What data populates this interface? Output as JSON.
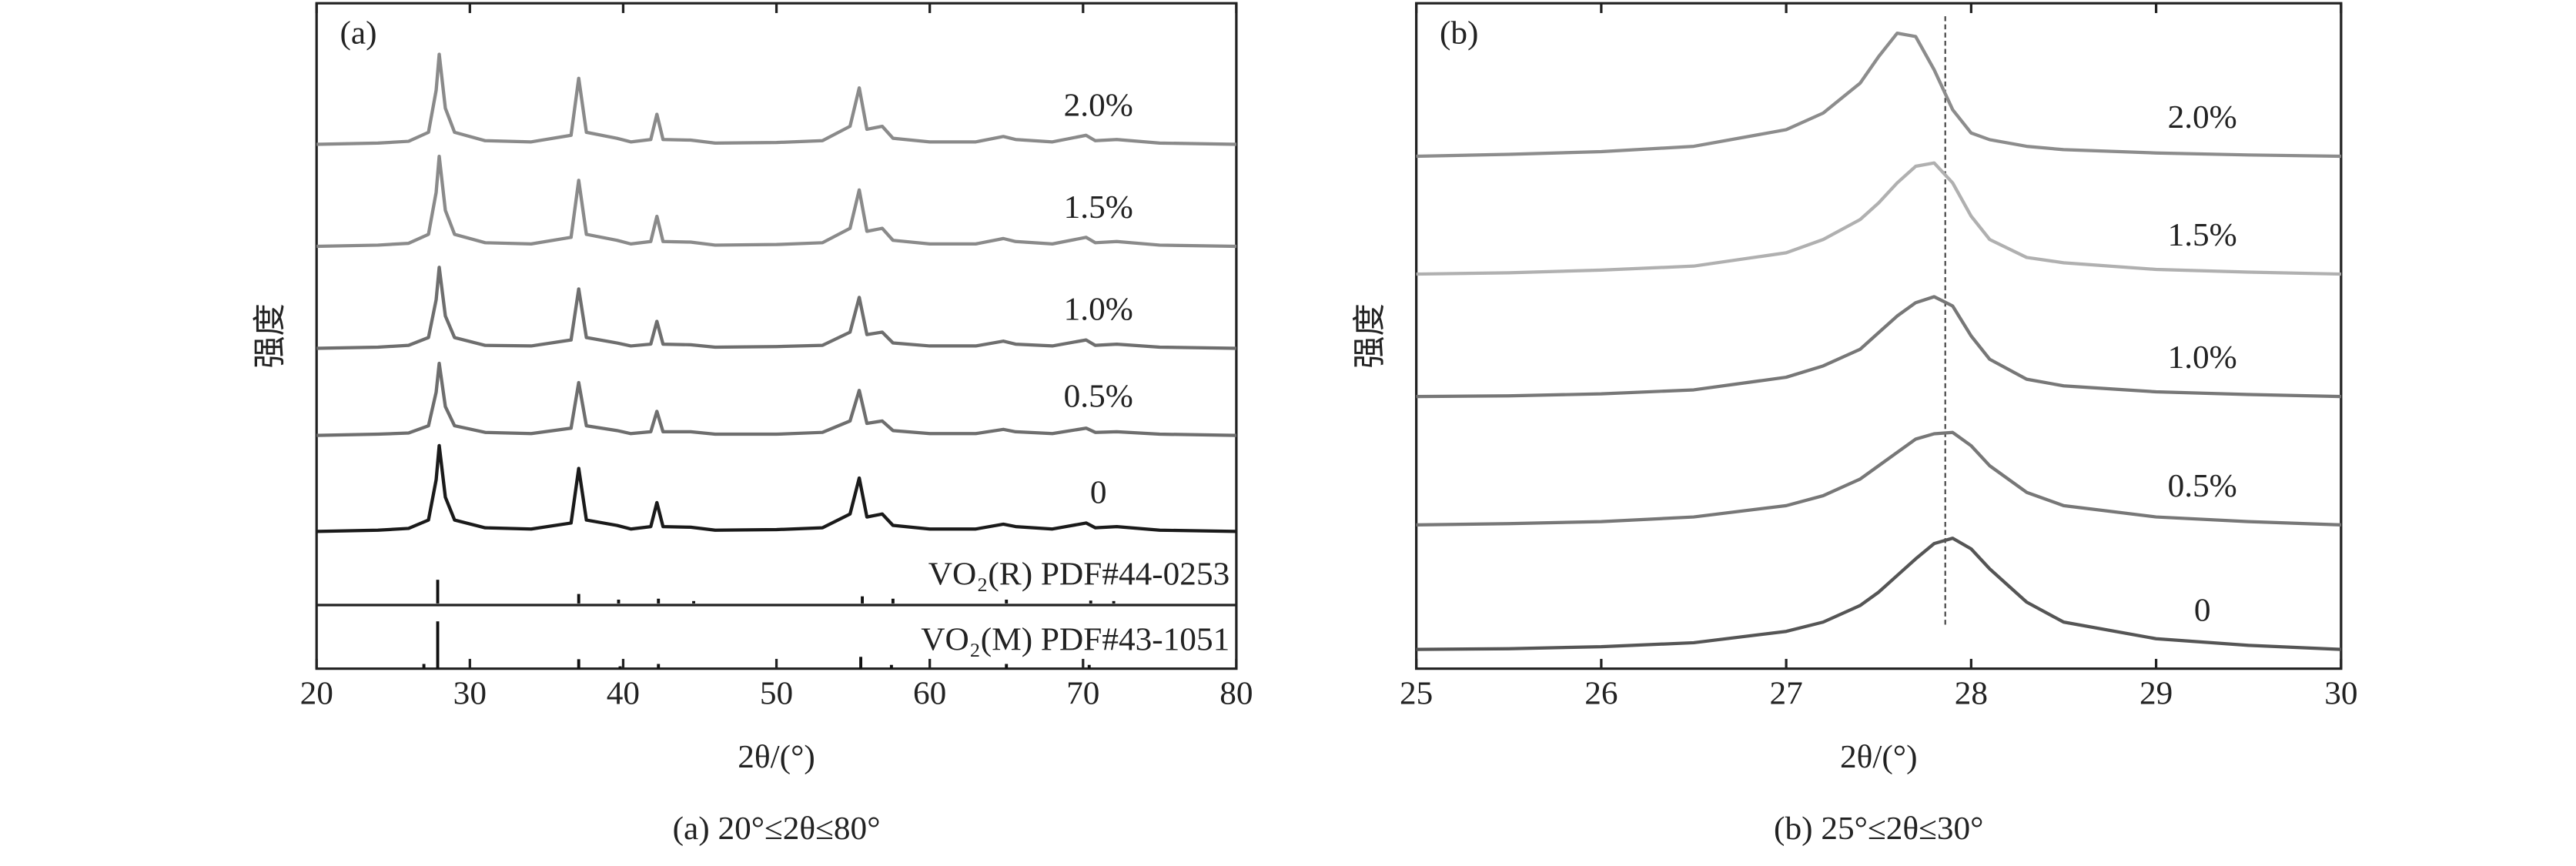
{
  "chart_data": [
    {
      "type": "line",
      "panel_label": "(a)",
      "caption": "(a) 20°≤2θ≤80°",
      "xlabel": "2θ/(°)",
      "ylabel": "强度",
      "xlim": [
        20,
        80
      ],
      "xticks": [
        20,
        30,
        40,
        50,
        60,
        70,
        80
      ],
      "ylim": [
        0,
        100
      ],
      "ref_ylim": [
        0,
        100
      ],
      "x": [
        20,
        24,
        26,
        27.3,
        27.8,
        28.0,
        28.4,
        29,
        31,
        34,
        36.6,
        37.1,
        37.6,
        39.6,
        40.5,
        41.8,
        42.2,
        42.6,
        44.4,
        46,
        50,
        53,
        54.8,
        55.4,
        55.9,
        56.9,
        57.6,
        60,
        63,
        64.8,
        65.6,
        68,
        70.2,
        70.8,
        72.2,
        75,
        80
      ],
      "series": [
        {
          "name": "2.0%",
          "color": "#8a8a8a",
          "values": [
            76.5,
            76.7,
            77,
            78.5,
            85.5,
            91.5,
            82.5,
            78.5,
            77.1,
            76.9,
            78,
            87.5,
            78.5,
            77.5,
            76.9,
            77.3,
            81.5,
            77.3,
            77.2,
            76.7,
            76.8,
            77.1,
            79.5,
            85.9,
            79,
            79.5,
            77.5,
            76.9,
            76.9,
            77.8,
            77.3,
            76.9,
            78,
            77.1,
            77.3,
            76.7,
            76.5
          ]
        },
        {
          "name": "1.5%",
          "color": "#8a8a8a",
          "values": [
            59.5,
            59.7,
            60,
            61.5,
            68.5,
            74.5,
            65.5,
            61.5,
            60.1,
            59.9,
            61,
            70.5,
            61.5,
            60.5,
            59.9,
            60.3,
            64.5,
            60.3,
            60.2,
            59.7,
            59.8,
            60.1,
            62.5,
            68.9,
            62,
            62.5,
            60.5,
            59.9,
            59.9,
            60.8,
            60.3,
            59.9,
            61,
            60.1,
            60.3,
            59.7,
            59.5
          ]
        },
        {
          "name": "1.0%",
          "color": "#6e6e6e",
          "values": [
            42.5,
            42.7,
            43,
            44.3,
            50.6,
            56,
            47.9,
            44.3,
            43,
            42.9,
            43.9,
            52.4,
            44.3,
            43.4,
            42.9,
            43.2,
            47,
            43.2,
            43.1,
            42.7,
            42.8,
            43,
            45.2,
            51,
            44.8,
            45.2,
            43.4,
            42.9,
            42.9,
            43.7,
            43.2,
            42.9,
            43.9,
            43,
            43.2,
            42.7,
            42.5
          ]
        },
        {
          "name": "0.5%",
          "color": "#6e6e6e",
          "values": [
            28,
            28.2,
            28.4,
            29.6,
            35.2,
            40,
            32.8,
            29.6,
            28.5,
            28.3,
            29.2,
            36.8,
            29.6,
            28.8,
            28.3,
            28.6,
            32,
            28.6,
            28.6,
            28.2,
            28.2,
            28.5,
            30.4,
            35.5,
            30,
            30.4,
            28.8,
            28.3,
            28.3,
            29,
            28.6,
            28.3,
            29.2,
            28.5,
            28.6,
            28.2,
            28
          ]
        },
        {
          "name": "0",
          "color": "#1a1a1a",
          "values": [
            12,
            12.2,
            12.5,
            13.9,
            20.6,
            26.3,
            17.7,
            13.9,
            12.6,
            12.4,
            13.4,
            22.5,
            13.9,
            13,
            12.4,
            12.8,
            16.8,
            12.8,
            12.7,
            12.2,
            12.3,
            12.6,
            14.9,
            20.9,
            14.4,
            14.9,
            13,
            12.4,
            12.4,
            13.2,
            12.8,
            12.4,
            13.4,
            12.6,
            12.8,
            12.2,
            12
          ]
        }
      ],
      "references": [
        {
          "name": "VO₂(R) PDF#44-0253",
          "positions": [
            27.9,
            37.1,
            39.7,
            42.3,
            44.6,
            55.6,
            57.6,
            65.0,
            70.5,
            72.0
          ],
          "values": [
            50,
            20,
            8,
            10,
            5,
            15,
            10,
            8,
            6,
            5
          ]
        },
        {
          "name": "VO₂(M) PDF#43-1051",
          "positions": [
            27.0,
            27.9,
            37.1,
            39.8,
            42.3,
            55.5,
            57.5,
            65.0,
            70.4
          ],
          "values": [
            10,
            100,
            20,
            5,
            10,
            25,
            8,
            10,
            8
          ]
        }
      ]
    },
    {
      "type": "line",
      "panel_label": "(b)",
      "caption": "(b) 25°≤2θ≤30°",
      "xlabel": "2θ/(°)",
      "ylabel": "强度",
      "xlim": [
        25,
        30
      ],
      "xticks": [
        25,
        26,
        27,
        28,
        29,
        30
      ],
      "ylim": [
        0,
        100
      ],
      "vline": 27.86,
      "x": [
        25,
        25.5,
        26,
        26.5,
        27,
        27.2,
        27.4,
        27.5,
        27.6,
        27.7,
        27.8,
        27.9,
        28,
        28.1,
        28.3,
        28.5,
        29,
        29.5,
        30
      ],
      "series": [
        {
          "name": "2.0%",
          "color": "#8c8c8c",
          "values": [
            77,
            77.3,
            77.7,
            78.5,
            81,
            83.5,
            88,
            92,
            95.5,
            95,
            90,
            84,
            80.5,
            79.5,
            78.5,
            78,
            77.5,
            77.2,
            77
          ]
        },
        {
          "name": "1.5%",
          "color": "#b0b0b0",
          "values": [
            59.3,
            59.5,
            59.9,
            60.5,
            62.5,
            64.5,
            67.5,
            70,
            73,
            75.5,
            76,
            73,
            68,
            64.5,
            61.8,
            61,
            60,
            59.6,
            59.3
          ]
        },
        {
          "name": "1.0%",
          "color": "#777777",
          "values": [
            40.9,
            41,
            41.3,
            41.9,
            43.8,
            45.5,
            48,
            50.5,
            53,
            55,
            55.9,
            54.5,
            50,
            46.5,
            43.5,
            42.5,
            41.6,
            41.2,
            40.9
          ]
        },
        {
          "name": "0.5%",
          "color": "#777777",
          "values": [
            21.6,
            21.8,
            22.1,
            22.8,
            24.5,
            26,
            28.5,
            30.5,
            32.5,
            34.5,
            35.3,
            35.5,
            33.5,
            30.5,
            26.5,
            24.5,
            22.8,
            22.1,
            21.6
          ]
        },
        {
          "name": "0",
          "color": "#555555",
          "values": [
            2.9,
            3,
            3.3,
            3.9,
            5.6,
            7,
            9.5,
            11.5,
            14,
            16.5,
            18.8,
            19.6,
            18,
            15,
            10,
            7,
            4.5,
            3.5,
            2.9
          ]
        }
      ]
    }
  ]
}
